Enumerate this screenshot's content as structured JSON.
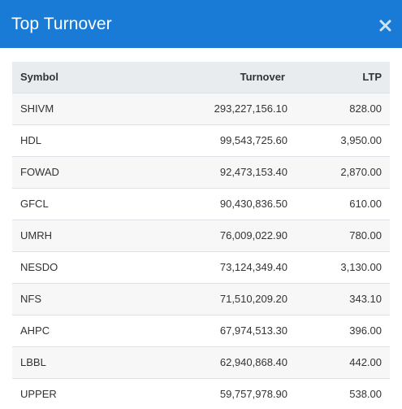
{
  "modal": {
    "title": "Top Turnover",
    "close_icon": "close-icon"
  },
  "table": {
    "headers": {
      "symbol": "Symbol",
      "turnover": "Turnover",
      "ltp": "LTP"
    },
    "rows": [
      {
        "symbol": "SHIVM",
        "turnover": "293,227,156.10",
        "ltp": "828.00"
      },
      {
        "symbol": "HDL",
        "turnover": "99,543,725.60",
        "ltp": "3,950.00"
      },
      {
        "symbol": "FOWAD",
        "turnover": "92,473,153.40",
        "ltp": "2,870.00"
      },
      {
        "symbol": "GFCL",
        "turnover": "90,430,836.50",
        "ltp": "610.00"
      },
      {
        "symbol": "UMRH",
        "turnover": "76,009,022.90",
        "ltp": "780.00"
      },
      {
        "symbol": "NESDO",
        "turnover": "73,124,349.40",
        "ltp": "3,130.00"
      },
      {
        "symbol": "NFS",
        "turnover": "71,510,209.20",
        "ltp": "343.10"
      },
      {
        "symbol": "AHPC",
        "turnover": "67,974,513.30",
        "ltp": "396.00"
      },
      {
        "symbol": "LBBL",
        "turnover": "62,940,868.40",
        "ltp": "442.00"
      },
      {
        "symbol": "UPPER",
        "turnover": "59,757,978.90",
        "ltp": "538.00"
      }
    ]
  },
  "colors": {
    "header_bg": "#1a7bd6",
    "header_text": "#ffffff",
    "table_header_bg": "#e9ecef",
    "row_stripe": "#f7f7f7"
  }
}
